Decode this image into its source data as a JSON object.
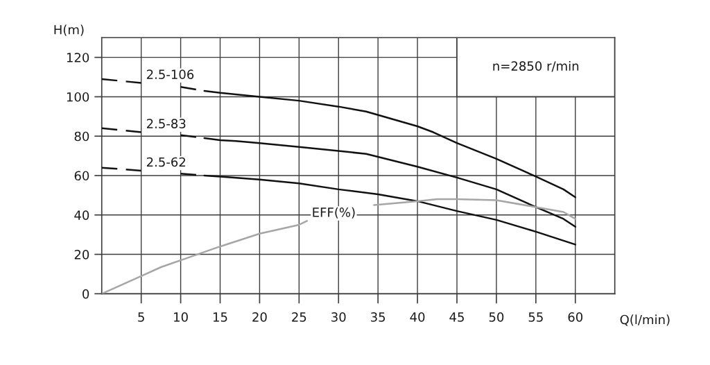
{
  "chart_data": {
    "type": "line",
    "xlabel": "Q(l/min)",
    "ylabel": "H(m)",
    "annotations": [
      "n=2850 r/min"
    ],
    "xlim": [
      0,
      65
    ],
    "ylim": [
      0,
      130
    ],
    "xticks": [
      5,
      10,
      15,
      20,
      25,
      30,
      35,
      40,
      45,
      50,
      55,
      60
    ],
    "yticks": [
      0,
      20,
      40,
      60,
      80,
      100,
      120
    ],
    "grid": true,
    "series": [
      {
        "name": "2.5-106",
        "color": "#111111",
        "line_style": "dashed",
        "x": [
          0,
          5,
          7.5,
          10,
          13
        ],
        "values": [
          109,
          107,
          null,
          105,
          103
        ]
      },
      {
        "color": "#111111",
        "line_style": "solid",
        "x": [
          13,
          15,
          20,
          25,
          30,
          33.5,
          40,
          42,
          45,
          50,
          55,
          58.5,
          60
        ],
        "values": [
          103,
          102,
          100,
          98,
          95,
          92.5,
          85,
          82,
          76.5,
          68.5,
          59.5,
          53,
          49
        ]
      },
      {
        "name": "2.5-83",
        "color": "#111111",
        "line_style": "dashed",
        "x": [
          0,
          5,
          7.5,
          10,
          13
        ],
        "values": [
          84,
          82,
          null,
          80.5,
          79
        ]
      },
      {
        "color": "#111111",
        "line_style": "solid",
        "x": [
          13,
          15,
          17,
          20,
          25,
          30,
          33.5,
          40,
          45,
          50,
          55,
          58.5,
          60
        ],
        "values": [
          79,
          78,
          77.5,
          76.5,
          74.5,
          72.5,
          71,
          64.5,
          59,
          53,
          44,
          38,
          34
        ]
      },
      {
        "name": "2.5-62",
        "color": "#111111",
        "line_style": "dashed",
        "x": [
          0,
          5,
          7.5,
          10,
          13
        ],
        "values": [
          64,
          62.5,
          null,
          61,
          60
        ]
      },
      {
        "color": "#111111",
        "line_style": "solid",
        "x": [
          13,
          15,
          20,
          25,
          30,
          35,
          40,
          45,
          50,
          55,
          60
        ],
        "values": [
          60,
          59.5,
          58,
          56,
          53,
          50.5,
          47,
          42,
          37.5,
          31.5,
          25
        ]
      },
      {
        "name": "EFF(%)",
        "color": "#a6a6a6",
        "line_style": "solid",
        "x": [
          0,
          5,
          7.5,
          10,
          15,
          20,
          25,
          26,
          30,
          34.5,
          40,
          42.5,
          45,
          50,
          55,
          58.5,
          60
        ],
        "values": [
          0,
          9,
          13.5,
          17,
          24,
          30.5,
          35,
          37,
          null,
          45,
          47,
          48,
          48,
          47.5,
          44,
          41.5,
          38
        ]
      }
    ]
  }
}
